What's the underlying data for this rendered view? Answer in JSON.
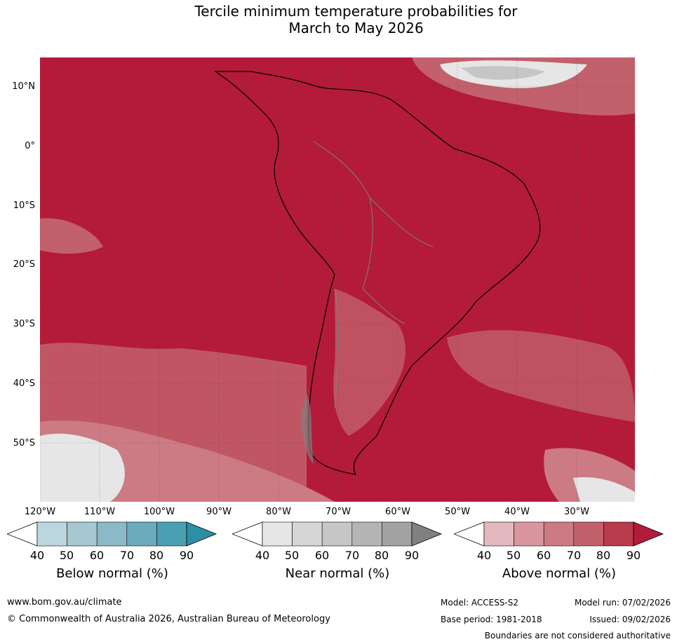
{
  "title_line1": "Tercile minimum temperature probabilities for",
  "title_line2": "March to May 2026",
  "lat_labels": [
    "10°N",
    "0°",
    "10°S",
    "20°S",
    "30°S",
    "40°S",
    "50°S"
  ],
  "lon_labels": [
    "120°W",
    "110°W",
    "100°W",
    "90°W",
    "80°W",
    "70°W",
    "60°W",
    "50°W",
    "40°W",
    "30°W"
  ],
  "colorbars": {
    "below": {
      "title": "Below normal (%)",
      "ticks": [
        "40",
        "50",
        "60",
        "70",
        "80",
        "90"
      ],
      "colors": [
        "#ffffff",
        "#bcd6dd",
        "#a6c9d1",
        "#8bb9c5",
        "#6aacbb",
        "#4aa0b2",
        "#2c8fa3"
      ]
    },
    "near": {
      "title": "Near normal (%)",
      "ticks": [
        "40",
        "50",
        "60",
        "70",
        "80",
        "90"
      ],
      "colors": [
        "#ffffff",
        "#e6e6e6",
        "#d6d6d6",
        "#c6c6c6",
        "#b4b4b4",
        "#a2a2a2",
        "#808080"
      ]
    },
    "above": {
      "title": "Above normal (%)",
      "ticks": [
        "40",
        "50",
        "60",
        "70",
        "80",
        "90"
      ],
      "colors": [
        "#ffffff",
        "#e4b8bf",
        "#d9969f",
        "#cc7a84",
        "#c2606c",
        "#b83c4c",
        "#b31b39"
      ]
    }
  },
  "map_colors": {
    "dominant": "#b31b39",
    "level80": "#b83c4c",
    "level70": "#c2606c",
    "level60": "#cc7a84",
    "level50": "#d9969f",
    "near_light": "#e6e6e6",
    "near_mid": "#c6c6c6",
    "coast": "#000000",
    "border": "#808080",
    "grid": "#333333"
  },
  "footer": {
    "website": "www.bom.gov.au/climate",
    "copyright": "© Commonwealth of Australia 2026, Australian Bureau of Meteorology",
    "model": "Model: ACCESS-S2",
    "model_run": "Model run: 07/02/2026",
    "base_period": "Base period: 1981-2018",
    "issued": "Issued: 09/02/2026",
    "disclaimer": "Boundaries are not considered authoritative"
  }
}
